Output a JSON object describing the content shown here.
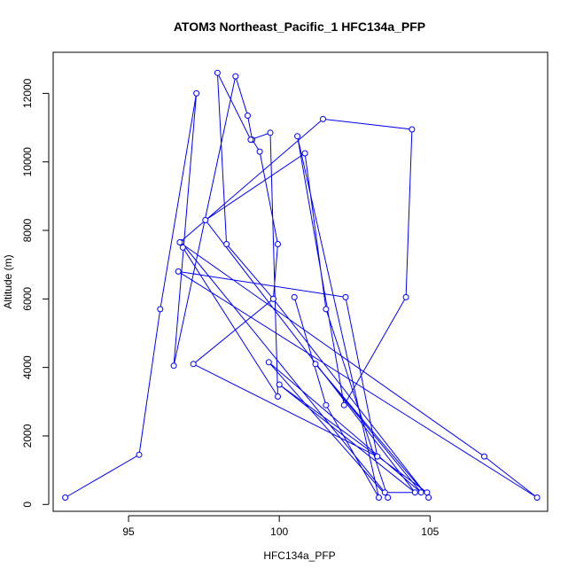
{
  "chart_data": {
    "type": "line",
    "title": "ATOM3 Northeast_Pacific_1 HFC134a_PFP",
    "xlabel": "HFC134a_PFP",
    "ylabel": "Altitude (m)",
    "xlim": [
      92.5,
      108.9
    ],
    "ylim": [
      -200,
      13200
    ],
    "x_ticks": [
      95,
      100,
      105
    ],
    "y_ticks": [
      0,
      2000,
      4000,
      6000,
      8000,
      10000,
      12000
    ],
    "grid": false,
    "legend": "none",
    "line_color": "#0000ff",
    "marker": "open-circle",
    "series": [
      {
        "x": [
          92.9,
          95.35,
          96.05,
          97.25,
          96.5,
          98.55,
          98.95,
          99.1,
          99.35,
          99.95,
          99.8,
          98.25,
          97.95,
          99.05,
          99.7,
          99.95,
          96.8,
          96.75,
          103.5,
          104.9,
          100.0,
          104.5,
          97.55,
          100.85,
          101.55,
          103.6,
          99.65,
          104.7,
          101.2,
          104.95,
          99.8,
          97.15,
          103.25,
          102.2,
          96.65,
          108.55,
          106.8,
          96.7,
          101.45,
          104.4,
          104.2,
          102.15,
          100.6,
          103.3,
          101.55,
          100.5
        ],
        "y": [
          200,
          1450,
          5700,
          12000,
          4050,
          12500,
          11350,
          10650,
          10300,
          7600,
          6000,
          7600,
          12600,
          10650,
          10850,
          3150,
          7500,
          7650,
          350,
          350,
          3500,
          350,
          8300,
          10250,
          5700,
          200,
          4150,
          350,
          4100,
          200,
          6000,
          4100,
          1400,
          6050,
          6800,
          200,
          1400,
          7650,
          11250,
          10950,
          6050,
          2900,
          10750,
          200,
          2900,
          6050
        ]
      }
    ]
  }
}
